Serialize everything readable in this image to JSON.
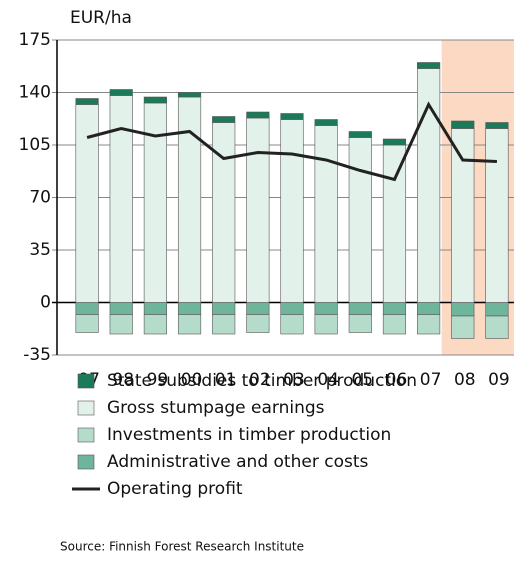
{
  "chart_data": {
    "type": "bar",
    "y_unit": "EUR/ha",
    "categories": [
      "97",
      "98",
      "99",
      "00",
      "01",
      "02",
      "03",
      "04",
      "05",
      "06",
      "07",
      "08",
      "09"
    ],
    "series": [
      {
        "name": "State subsidies to timber production",
        "color": "#1a7a5a",
        "values": [
          4,
          4,
          4,
          3,
          4,
          4,
          4,
          4,
          4,
          4,
          4,
          5,
          4
        ]
      },
      {
        "name": "Gross stumpage earnings",
        "color": "#e2f2ea",
        "values": [
          132,
          138,
          133,
          137,
          120,
          123,
          122,
          118,
          110,
          105,
          156,
          116,
          116
        ]
      },
      {
        "name": "Investments in timber production",
        "color": "#b5dccb",
        "values": [
          -12,
          -13,
          -13,
          -13,
          -13,
          -12,
          -13,
          -13,
          -12,
          -13,
          -13,
          -15,
          -15
        ]
      },
      {
        "name": "Administrative and other costs",
        "color": "#6fb59b",
        "values": [
          -8,
          -8,
          -8,
          -8,
          -8,
          -8,
          -8,
          -8,
          -8,
          -8,
          -8,
          -9,
          -9
        ]
      },
      {
        "name": "Operating profit",
        "type": "line",
        "color": "#222222",
        "values": [
          110,
          116,
          111,
          114,
          96,
          100,
          99,
          95,
          88,
          82,
          132,
          95,
          94
        ]
      }
    ],
    "ylim": [
      -35,
      175
    ],
    "yticks": [
      -35,
      0,
      35,
      70,
      105,
      140,
      175
    ],
    "grid": true,
    "source": "Source: Finnish Forest Research Institute"
  }
}
